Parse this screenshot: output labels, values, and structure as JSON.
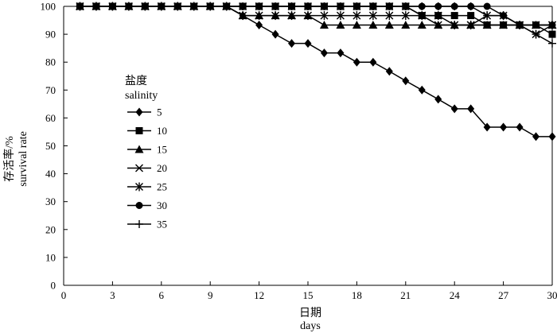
{
  "chart_data": {
    "type": "line",
    "title": "",
    "xlabel_cn": "日期",
    "xlabel_en": "days",
    "ylabel_cn": "存活率/%",
    "ylabel_en": "survival rate",
    "xlim": [
      0,
      30
    ],
    "ylim": [
      0,
      100
    ],
    "xticks": [
      0,
      3,
      6,
      9,
      12,
      15,
      18,
      21,
      24,
      27,
      30
    ],
    "yticks": [
      0,
      10,
      20,
      30,
      40,
      50,
      60,
      70,
      80,
      90,
      100
    ],
    "grid": false,
    "legend": {
      "title_cn": "盐度",
      "title_en": "salinity",
      "placement": "center-left"
    },
    "x": [
      1,
      2,
      3,
      4,
      5,
      6,
      7,
      8,
      9,
      10,
      11,
      12,
      13,
      14,
      15,
      16,
      17,
      18,
      19,
      20,
      21,
      22,
      23,
      24,
      25,
      26,
      27,
      28,
      29,
      30
    ],
    "series": [
      {
        "name": "5",
        "marker": "diamond",
        "values": [
          100,
          100,
          100,
          100,
          100,
          100,
          100,
          100,
          100,
          100,
          96.7,
          93.3,
          90,
          86.7,
          86.7,
          83.3,
          83.3,
          80,
          80,
          76.7,
          73.3,
          70,
          66.7,
          63.3,
          63.3,
          56.7,
          56.7,
          56.7,
          53.3,
          53.3
        ]
      },
      {
        "name": "10",
        "marker": "square",
        "values": [
          100,
          100,
          100,
          100,
          100,
          100,
          100,
          100,
          100,
          100,
          100,
          100,
          100,
          100,
          100,
          100,
          100,
          100,
          100,
          100,
          100,
          96.7,
          96.7,
          96.7,
          96.7,
          93.3,
          93.3,
          93.3,
          93.3,
          90
        ]
      },
      {
        "name": "15",
        "marker": "triangle",
        "values": [
          100,
          100,
          100,
          100,
          100,
          100,
          100,
          100,
          100,
          100,
          96.7,
          96.7,
          96.7,
          96.7,
          96.7,
          93.3,
          93.3,
          93.3,
          93.3,
          93.3,
          93.3,
          93.3,
          93.3,
          93.3,
          93.3,
          93.3,
          93.3,
          93.3,
          93.3,
          93.3
        ]
      },
      {
        "name": "20",
        "marker": "x",
        "values": [
          100,
          100,
          100,
          100,
          100,
          100,
          100,
          100,
          100,
          100,
          100,
          100,
          100,
          100,
          100,
          100,
          100,
          100,
          100,
          100,
          100,
          96.7,
          93.3,
          93.3,
          93.3,
          93.3,
          93.3,
          93.3,
          93.3,
          93.3
        ]
      },
      {
        "name": "25",
        "marker": "star",
        "values": [
          100,
          100,
          100,
          100,
          100,
          100,
          100,
          100,
          100,
          100,
          96.7,
          96.7,
          96.7,
          96.7,
          96.7,
          96.7,
          96.7,
          96.7,
          96.7,
          96.7,
          96.7,
          96.7,
          96.7,
          93.3,
          93.3,
          96.7,
          96.7,
          93.3,
          90,
          93.3
        ]
      },
      {
        "name": "30",
        "marker": "circle",
        "values": [
          100,
          100,
          100,
          100,
          100,
          100,
          100,
          100,
          100,
          100,
          100,
          100,
          100,
          100,
          100,
          100,
          100,
          100,
          100,
          100,
          100,
          100,
          100,
          100,
          100,
          100,
          96.7,
          93.3,
          93.3,
          93.3
        ]
      },
      {
        "name": "35",
        "marker": "plus",
        "values": [
          100,
          100,
          100,
          100,
          100,
          100,
          100,
          100,
          100,
          100,
          100,
          100,
          100,
          100,
          100,
          100,
          100,
          100,
          100,
          100,
          100,
          100,
          100,
          100,
          100,
          96.7,
          96.7,
          93.3,
          90,
          86.7
        ]
      }
    ]
  }
}
